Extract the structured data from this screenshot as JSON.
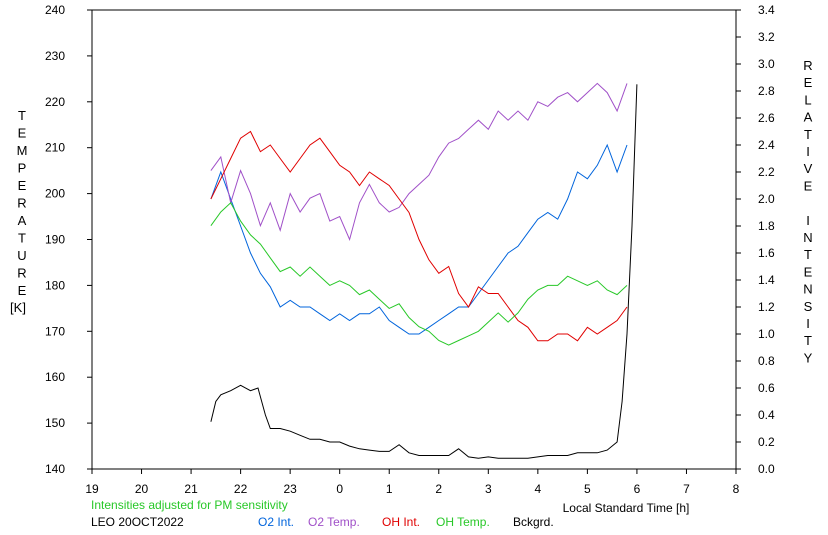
{
  "chart_data": {
    "type": "line",
    "xlabel": "Local Standard Time [h]",
    "ylabel_left": "TEMPERATURE",
    "ylabel_left_unit": "[K]",
    "ylabel_right": "RELATIVE INTENSITY",
    "x_ticks": [
      "19",
      "20",
      "21",
      "22",
      "23",
      "0",
      "1",
      "2",
      "3",
      "4",
      "5",
      "6",
      "7",
      "8"
    ],
    "x_range": [
      19,
      32
    ],
    "y_left_ticks": [
      "240",
      "230",
      "220",
      "210",
      "200",
      "190",
      "180",
      "170",
      "160",
      "150",
      "140"
    ],
    "y_left_range": [
      140,
      240
    ],
    "y_right_ticks": [
      "3.4",
      "3.2",
      "3.0",
      "2.8",
      "2.6",
      "2.4",
      "2.2",
      "2.0",
      "1.8",
      "1.6",
      "1.4",
      "1.2",
      "1.0",
      "0.8",
      "0.6",
      "0.4",
      "0.2",
      "0.0"
    ],
    "y_right_range": [
      0,
      3.4
    ],
    "note": "Intensities adjusted for PM sensitivity",
    "station": "LEO 20OCT2022",
    "colors": {
      "o2_int": "#0064dc",
      "o2_temp": "#a050c8",
      "oh_int": "#e00000",
      "oh_temp": "#28c828",
      "bckgrd": "#000000",
      "note": "#28c828"
    },
    "series": [
      {
        "name": "O2 Int.",
        "axis": "right",
        "x": [
          21.4,
          21.6,
          21.8,
          22.0,
          22.2,
          22.4,
          22.6,
          22.8,
          23.0,
          23.2,
          23.4,
          23.6,
          23.8,
          24.0,
          24.2,
          24.4,
          24.6,
          24.8,
          25.0,
          25.2,
          25.4,
          25.6,
          25.8,
          26.0,
          26.2,
          26.4,
          26.6,
          26.8,
          27.0,
          27.2,
          27.4,
          27.6,
          27.8,
          28.0,
          28.2,
          28.4,
          28.6,
          28.8,
          29.0,
          29.2,
          29.4,
          29.6,
          29.8
        ],
        "y": [
          2.0,
          2.2,
          2.0,
          1.8,
          1.6,
          1.45,
          1.35,
          1.2,
          1.25,
          1.2,
          1.2,
          1.15,
          1.1,
          1.15,
          1.1,
          1.15,
          1.15,
          1.2,
          1.1,
          1.05,
          1.0,
          1.0,
          1.05,
          1.1,
          1.15,
          1.2,
          1.2,
          1.3,
          1.4,
          1.5,
          1.6,
          1.65,
          1.75,
          1.85,
          1.9,
          1.85,
          2.0,
          2.2,
          2.15,
          2.25,
          2.4,
          2.2,
          2.4
        ]
      },
      {
        "name": "O2 Temp.",
        "axis": "left",
        "x": [
          21.4,
          21.6,
          21.8,
          22.0,
          22.2,
          22.4,
          22.6,
          22.8,
          23.0,
          23.2,
          23.4,
          23.6,
          23.8,
          24.0,
          24.2,
          24.4,
          24.6,
          24.8,
          25.0,
          25.2,
          25.4,
          25.6,
          25.8,
          26.0,
          26.2,
          26.4,
          26.6,
          26.8,
          27.0,
          27.2,
          27.4,
          27.6,
          27.8,
          28.0,
          28.2,
          28.4,
          28.6,
          28.8,
          29.0,
          29.2,
          29.4,
          29.6,
          29.8
        ],
        "y": [
          205,
          208,
          198,
          205,
          200,
          193,
          198,
          192,
          200,
          196,
          199,
          200,
          194,
          195,
          190,
          198,
          202,
          198,
          196,
          197,
          200,
          202,
          204,
          208,
          211,
          212,
          214,
          216,
          214,
          218,
          216,
          218,
          216,
          220,
          219,
          221,
          222,
          220,
          222,
          224,
          222,
          218,
          224
        ]
      },
      {
        "name": "OH Int.",
        "axis": "right",
        "x": [
          21.4,
          21.6,
          21.8,
          22.0,
          22.2,
          22.4,
          22.6,
          22.8,
          23.0,
          23.2,
          23.4,
          23.6,
          23.8,
          24.0,
          24.2,
          24.4,
          24.6,
          24.8,
          25.0,
          25.2,
          25.4,
          25.6,
          25.8,
          26.0,
          26.2,
          26.4,
          26.6,
          26.8,
          27.0,
          27.2,
          27.4,
          27.6,
          27.8,
          28.0,
          28.2,
          28.4,
          28.6,
          28.8,
          29.0,
          29.2,
          29.4,
          29.6,
          29.8
        ],
        "y": [
          2.0,
          2.15,
          2.3,
          2.45,
          2.5,
          2.35,
          2.4,
          2.3,
          2.2,
          2.3,
          2.4,
          2.45,
          2.35,
          2.25,
          2.2,
          2.1,
          2.2,
          2.15,
          2.1,
          2.0,
          1.9,
          1.7,
          1.55,
          1.45,
          1.5,
          1.3,
          1.2,
          1.35,
          1.3,
          1.3,
          1.2,
          1.1,
          1.05,
          0.95,
          0.95,
          1.0,
          1.0,
          0.95,
          1.05,
          1.0,
          1.05,
          1.1,
          1.2
        ]
      },
      {
        "name": "OH Temp.",
        "axis": "left",
        "x": [
          21.4,
          21.6,
          21.8,
          22.0,
          22.2,
          22.4,
          22.6,
          22.8,
          23.0,
          23.2,
          23.4,
          23.6,
          23.8,
          24.0,
          24.2,
          24.4,
          24.6,
          24.8,
          25.0,
          25.2,
          25.4,
          25.6,
          25.8,
          26.0,
          26.2,
          26.4,
          26.6,
          26.8,
          27.0,
          27.2,
          27.4,
          27.6,
          27.8,
          28.0,
          28.2,
          28.4,
          28.6,
          28.8,
          29.0,
          29.2,
          29.4,
          29.6,
          29.8
        ],
        "y": [
          193,
          196,
          198,
          194,
          191,
          189,
          186,
          183,
          184,
          182,
          184,
          182,
          180,
          181,
          180,
          178,
          179,
          177,
          175,
          176,
          173,
          171,
          170,
          168,
          167,
          168,
          169,
          170,
          172,
          174,
          172,
          174,
          177,
          179,
          180,
          180,
          182,
          181,
          180,
          181,
          179,
          178,
          180
        ]
      },
      {
        "name": "Bckgrd.",
        "axis": "right",
        "x": [
          21.4,
          21.5,
          21.6,
          21.8,
          22.0,
          22.2,
          22.35,
          22.5,
          22.6,
          22.8,
          23.0,
          23.2,
          23.4,
          23.6,
          23.8,
          24.0,
          24.2,
          24.4,
          24.6,
          24.8,
          25.0,
          25.2,
          25.4,
          25.6,
          25.8,
          26.0,
          26.2,
          26.4,
          26.6,
          26.8,
          27.0,
          27.2,
          27.4,
          27.6,
          27.8,
          28.0,
          28.2,
          28.4,
          28.6,
          28.8,
          29.0,
          29.2,
          29.4,
          29.6,
          29.7,
          29.8,
          29.9,
          30.0
        ],
        "y": [
          0.35,
          0.5,
          0.55,
          0.58,
          0.62,
          0.58,
          0.6,
          0.4,
          0.3,
          0.3,
          0.28,
          0.25,
          0.22,
          0.22,
          0.2,
          0.2,
          0.17,
          0.15,
          0.14,
          0.13,
          0.13,
          0.18,
          0.12,
          0.1,
          0.1,
          0.1,
          0.1,
          0.15,
          0.09,
          0.08,
          0.09,
          0.08,
          0.08,
          0.08,
          0.08,
          0.09,
          0.1,
          0.1,
          0.1,
          0.12,
          0.12,
          0.12,
          0.14,
          0.2,
          0.5,
          1.0,
          1.8,
          2.85
        ]
      }
    ]
  }
}
